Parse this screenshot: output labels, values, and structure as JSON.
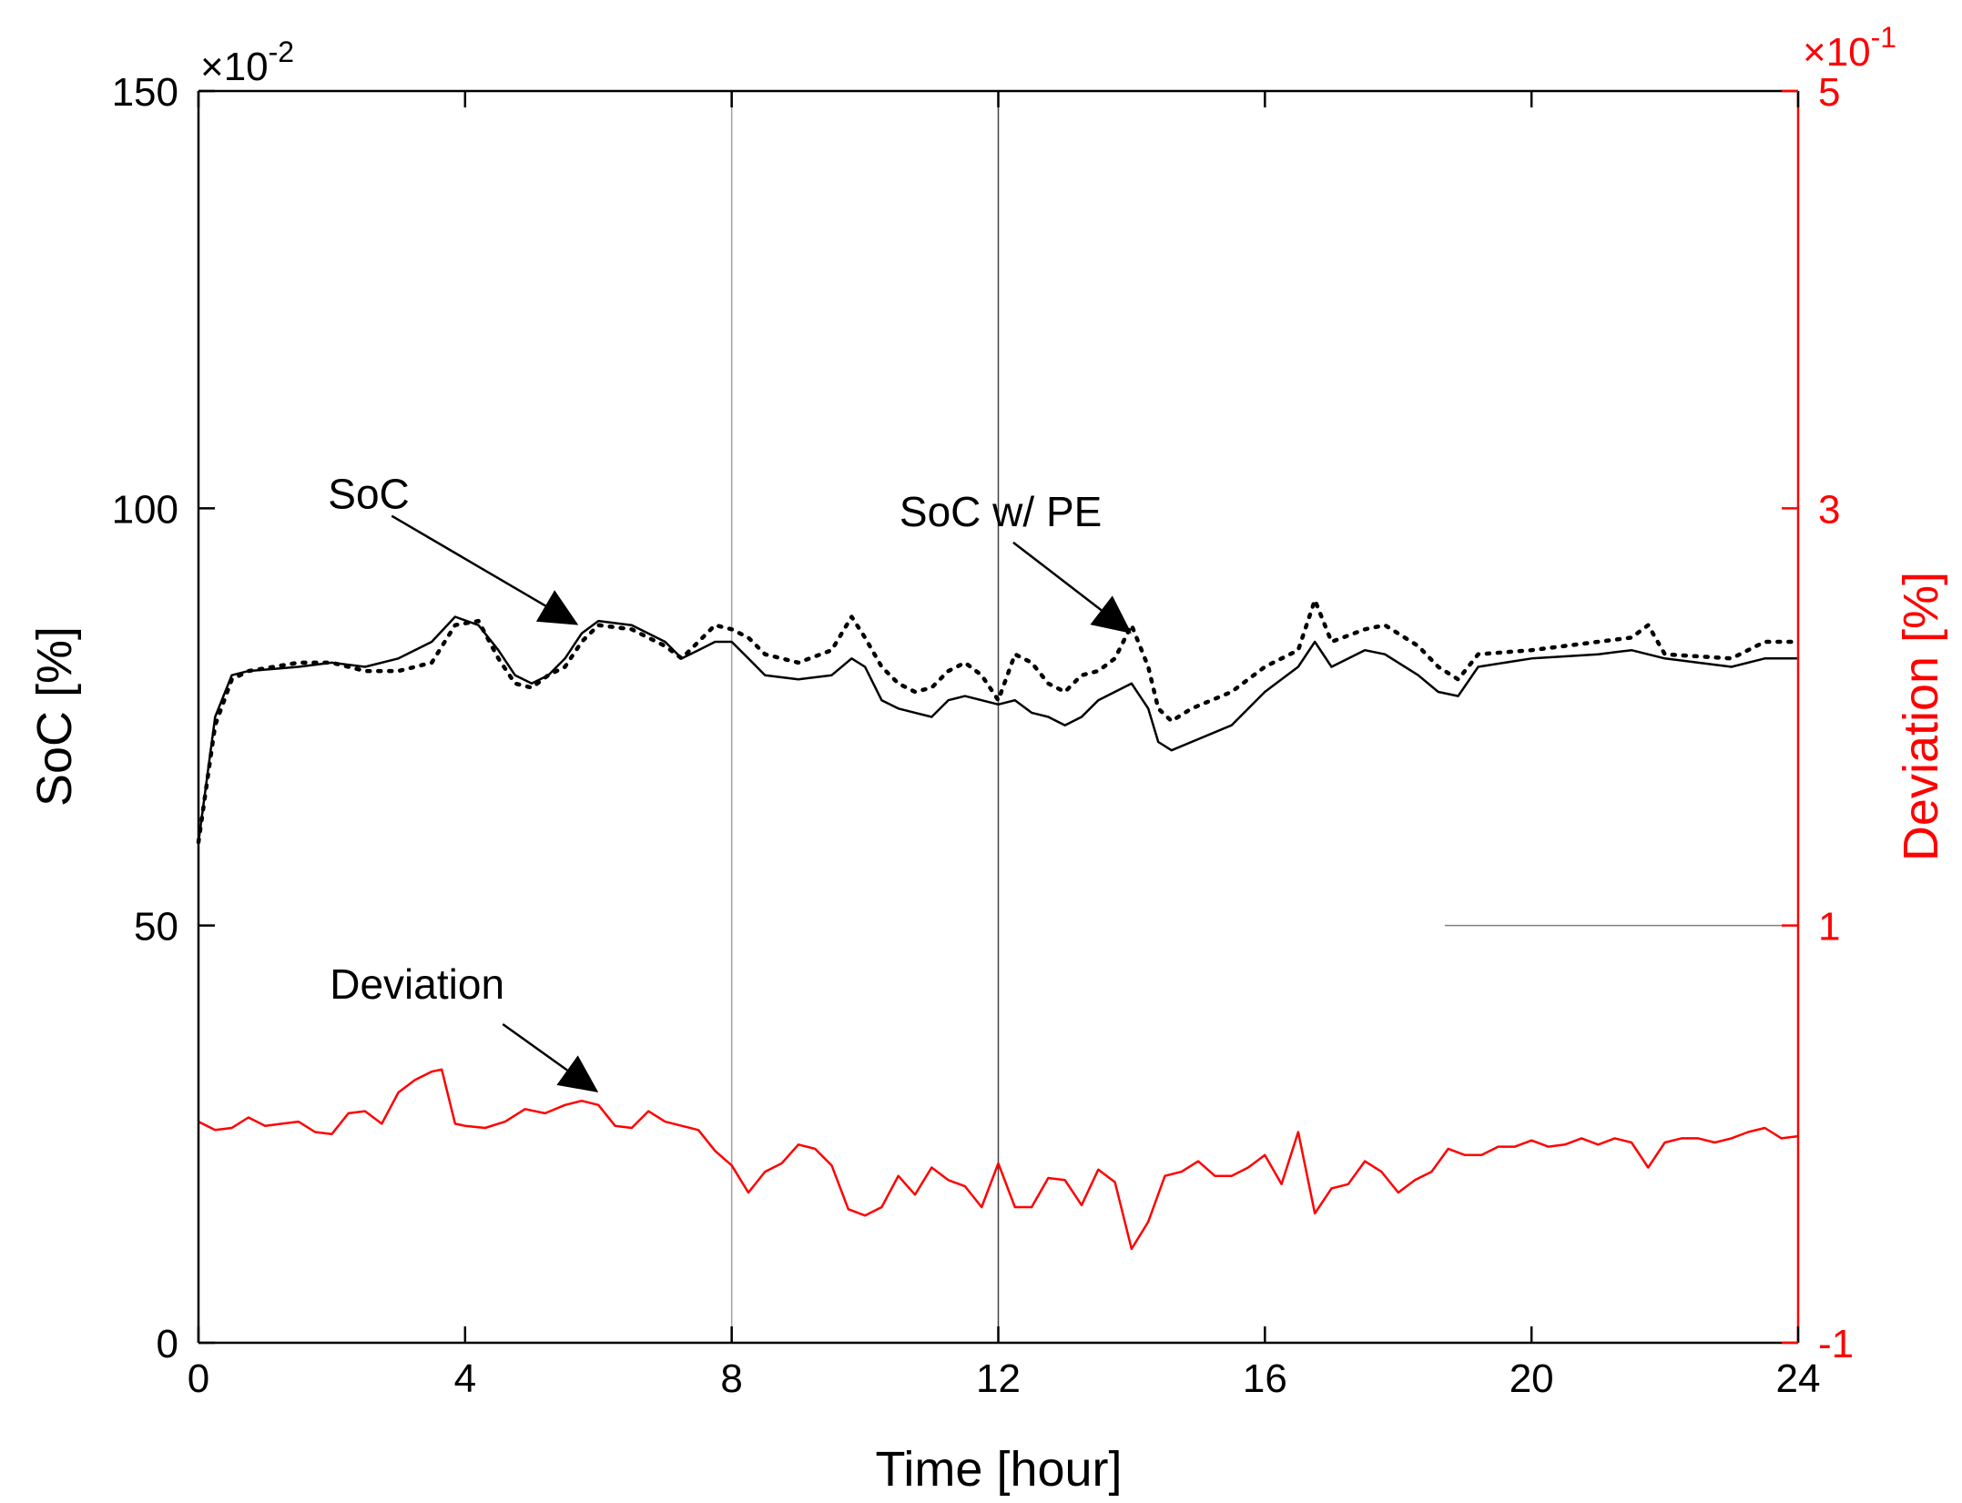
{
  "chart_data": {
    "type": "line",
    "xlabel": "Time [hour]",
    "ylabel_left": "SoC [%]",
    "ylabel_right": "Deviation [%]",
    "x_ticks": [
      0,
      4,
      8,
      12,
      16,
      20,
      24
    ],
    "x_tick_labels": [
      "0",
      "4",
      "8",
      "12",
      "16",
      "20",
      "24"
    ],
    "xlim": [
      0,
      24
    ],
    "y_left_ticks": [
      0,
      50,
      100,
      150
    ],
    "y_left_tick_labels": [
      "0",
      "50",
      "100",
      "150"
    ],
    "ylim_left": [
      0,
      150
    ],
    "y_left_exponent": "×10",
    "y_left_exponent_power": "-2",
    "y_right_ticks": [
      -1,
      1,
      3,
      5
    ],
    "y_right_tick_labels": [
      "-1",
      "1",
      "3",
      "5"
    ],
    "ylim_right": [
      -1,
      5
    ],
    "y_right_exponent": "×10",
    "y_right_exponent_power": "-1",
    "vertical_lines": [
      8,
      12
    ],
    "colors": {
      "soc": "#000000",
      "soc_pe": "#000000",
      "deviation": "#ff0000",
      "right_axis": "#ff0000"
    },
    "annotations": [
      {
        "text": "SoC",
        "tip_x": 5.7,
        "tip_y": 86
      },
      {
        "text": "SoC w/ PE",
        "tip_x": 14.0,
        "tip_y": 85
      },
      {
        "text": "Deviation",
        "tip_x": 6.0,
        "tip_y": 30
      }
    ],
    "series": [
      {
        "name": "SoC",
        "axis": "left",
        "style": "solid",
        "x": [
          0,
          0.25,
          0.5,
          0.75,
          1.5,
          2.0,
          2.5,
          3.0,
          3.5,
          3.85,
          4.2,
          4.5,
          4.75,
          5.0,
          5.25,
          5.5,
          5.75,
          6.0,
          6.5,
          7.0,
          7.25,
          7.5,
          7.75,
          8.0,
          8.25,
          8.5,
          9.0,
          9.5,
          9.8,
          10.0,
          10.25,
          10.5,
          10.75,
          11.0,
          11.25,
          11.5,
          12.0,
          12.25,
          12.5,
          12.75,
          13.0,
          13.25,
          13.5,
          14.0,
          14.25,
          14.4,
          14.6,
          14.9,
          15.5,
          16.0,
          16.5,
          16.75,
          17.0,
          17.5,
          17.8,
          18.3,
          18.6,
          18.9,
          19.2,
          20.0,
          21.0,
          21.5,
          22.0,
          23.0,
          23.5,
          24.0
        ],
        "y": [
          60,
          75,
          80,
          80.5,
          81,
          81.5,
          81,
          82,
          84,
          87,
          86,
          83,
          80,
          79,
          80,
          82,
          85,
          86.5,
          86,
          84,
          82,
          83,
          84,
          84,
          82,
          80,
          79.5,
          80,
          82,
          81,
          77,
          76,
          75.5,
          75,
          77,
          77.5,
          76.5,
          77,
          75.5,
          75,
          74,
          75,
          77,
          79,
          76,
          72,
          71,
          72,
          74,
          78,
          81,
          84,
          81,
          83,
          82.5,
          80,
          78,
          77.5,
          81,
          82,
          82.5,
          83,
          82,
          81,
          82,
          82
        ]
      },
      {
        "name": "SoC w/ PE",
        "axis": "left",
        "style": "dotted",
        "x": [
          0,
          0.25,
          0.5,
          0.75,
          1.5,
          2.0,
          2.5,
          3.0,
          3.5,
          3.85,
          4.2,
          4.5,
          4.75,
          5.0,
          5.25,
          5.5,
          5.75,
          6.0,
          6.5,
          7.0,
          7.25,
          7.5,
          7.75,
          8.0,
          8.25,
          8.5,
          9.0,
          9.5,
          9.8,
          10.0,
          10.25,
          10.5,
          10.75,
          11.0,
          11.25,
          11.5,
          11.75,
          12.0,
          12.25,
          12.5,
          12.75,
          13.0,
          13.25,
          13.5,
          13.75,
          14.0,
          14.25,
          14.4,
          14.6,
          14.9,
          15.5,
          16.0,
          16.5,
          16.75,
          17.0,
          17.5,
          17.8,
          18.3,
          18.6,
          18.9,
          19.2,
          20.0,
          21.0,
          21.5,
          21.75,
          22.0,
          23.0,
          23.5,
          24.0
        ],
        "y": [
          60,
          74,
          79.5,
          80.5,
          81.5,
          81.5,
          80.5,
          80.5,
          81.5,
          86,
          86.5,
          82,
          79,
          78.5,
          80,
          81,
          84,
          86,
          85.5,
          83.5,
          82,
          84,
          86,
          85.5,
          84.5,
          82.5,
          81.5,
          83,
          87,
          84.5,
          81,
          79,
          78,
          78.5,
          80.5,
          81.5,
          80,
          77,
          82.5,
          81.5,
          79,
          78,
          80,
          80.5,
          82,
          86,
          81,
          76,
          74.5,
          76,
          78,
          81,
          83,
          89,
          84,
          85.5,
          86,
          83.5,
          81,
          79.5,
          82.5,
          83,
          84,
          84.5,
          86,
          82.5,
          82,
          84,
          84
        ]
      },
      {
        "name": "Deviation",
        "axis": "right",
        "style": "solid",
        "x": [
          0,
          0.25,
          0.5,
          0.75,
          1.0,
          1.25,
          1.5,
          1.75,
          2.0,
          2.25,
          2.5,
          2.75,
          3.0,
          3.25,
          3.5,
          3.65,
          3.85,
          4.0,
          4.3,
          4.6,
          4.9,
          5.2,
          5.5,
          5.75,
          6.0,
          6.25,
          6.5,
          6.75,
          7.0,
          7.25,
          7.5,
          7.75,
          8.0,
          8.25,
          8.5,
          8.75,
          9.0,
          9.25,
          9.5,
          9.75,
          10.0,
          10.25,
          10.5,
          10.75,
          11.0,
          11.25,
          11.5,
          11.75,
          12.0,
          12.25,
          12.5,
          12.75,
          13.0,
          13.25,
          13.5,
          13.75,
          14.0,
          14.25,
          14.5,
          14.75,
          15.0,
          15.25,
          15.5,
          15.75,
          16.0,
          16.25,
          16.5,
          16.75,
          17.0,
          17.25,
          17.5,
          17.75,
          18.0,
          18.25,
          18.5,
          18.75,
          19.0,
          19.25,
          19.5,
          19.75,
          20.0,
          20.25,
          20.5,
          20.75,
          21.0,
          21.25,
          21.5,
          21.75,
          22.0,
          22.25,
          22.5,
          22.75,
          23.0,
          23.25,
          23.5,
          23.75,
          24.0
        ],
        "y": [
          0.06,
          0.02,
          0.03,
          0.08,
          0.04,
          0.05,
          0.06,
          0.01,
          0.0,
          0.1,
          0.11,
          0.05,
          0.2,
          0.26,
          0.3,
          0.31,
          0.05,
          0.04,
          0.03,
          0.06,
          0.12,
          0.1,
          0.14,
          0.16,
          0.14,
          0.04,
          0.03,
          0.11,
          0.06,
          0.04,
          0.02,
          -0.08,
          -0.15,
          -0.28,
          -0.18,
          -0.14,
          -0.05,
          -0.07,
          -0.15,
          -0.36,
          -0.39,
          -0.35,
          -0.2,
          -0.29,
          -0.16,
          -0.22,
          -0.25,
          -0.35,
          -0.14,
          -0.35,
          -0.35,
          -0.21,
          -0.22,
          -0.34,
          -0.17,
          -0.23,
          -0.55,
          -0.42,
          -0.2,
          -0.18,
          -0.13,
          -0.2,
          -0.2,
          -0.16,
          -0.1,
          -0.24,
          0.01,
          -0.38,
          -0.26,
          -0.24,
          -0.13,
          -0.18,
          -0.28,
          -0.22,
          -0.18,
          -0.07,
          -0.1,
          -0.1,
          -0.06,
          -0.06,
          -0.03,
          -0.06,
          -0.05,
          -0.02,
          -0.05,
          -0.02,
          -0.04,
          -0.16,
          -0.04,
          -0.02,
          -0.02,
          -0.04,
          -0.02,
          0.01,
          0.03,
          -0.02,
          -0.01
        ]
      }
    ]
  }
}
